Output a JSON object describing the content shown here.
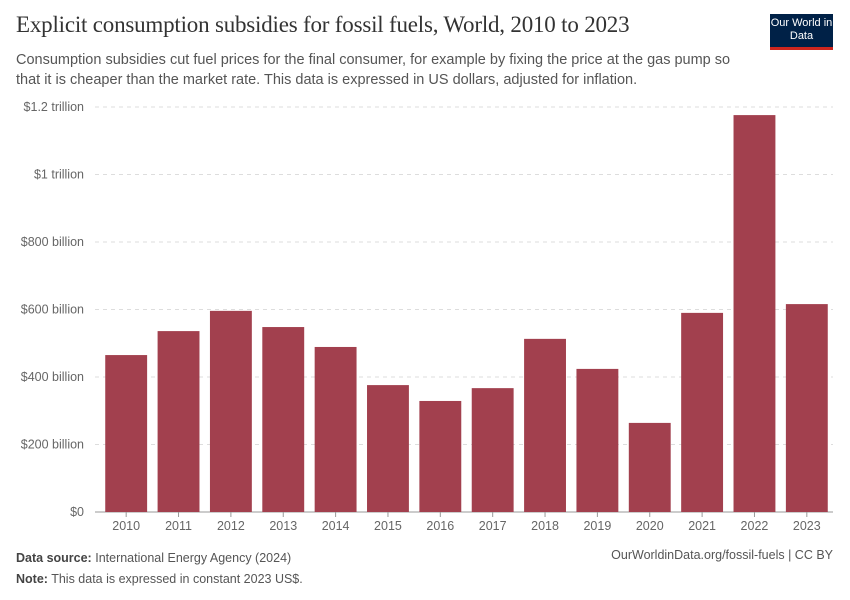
{
  "title": "Explicit consumption subsidies for fossil fuels, World, 2010 to 2023",
  "subtitle": "Consumption subsidies cut fuel prices for the final consumer, for example by fixing the price at the gas pump so that it is cheaper than the market rate. This data is expressed in US dollars, adjusted for inflation.",
  "logo": "Our World in Data",
  "footer": {
    "source_label": "Data source:",
    "source": "International Energy Agency (2024)",
    "note_label": "Note:",
    "note": "This data is expressed in constant 2023 US$.",
    "url": "OurWorldinData.org/fossil-fuels | CC BY"
  },
  "chart_data": {
    "type": "bar",
    "categories": [
      "2010",
      "2011",
      "2012",
      "2013",
      "2014",
      "2015",
      "2016",
      "2017",
      "2018",
      "2019",
      "2020",
      "2021",
      "2022",
      "2023"
    ],
    "values": [
      465,
      536,
      596,
      548,
      489,
      376,
      329,
      367,
      513,
      424,
      264,
      590,
      1176,
      616
    ],
    "unit": "billion US$",
    "ylim": [
      0,
      1200
    ],
    "yticks": [
      0,
      200,
      400,
      600,
      800,
      1000,
      1200
    ],
    "ytick_labels": [
      "$0",
      "$200 billion",
      "$400 billion",
      "$600 billion",
      "$800 billion",
      "$1 trillion",
      "$1.2 trillion"
    ],
    "grid": true,
    "color": "#a2404e"
  }
}
